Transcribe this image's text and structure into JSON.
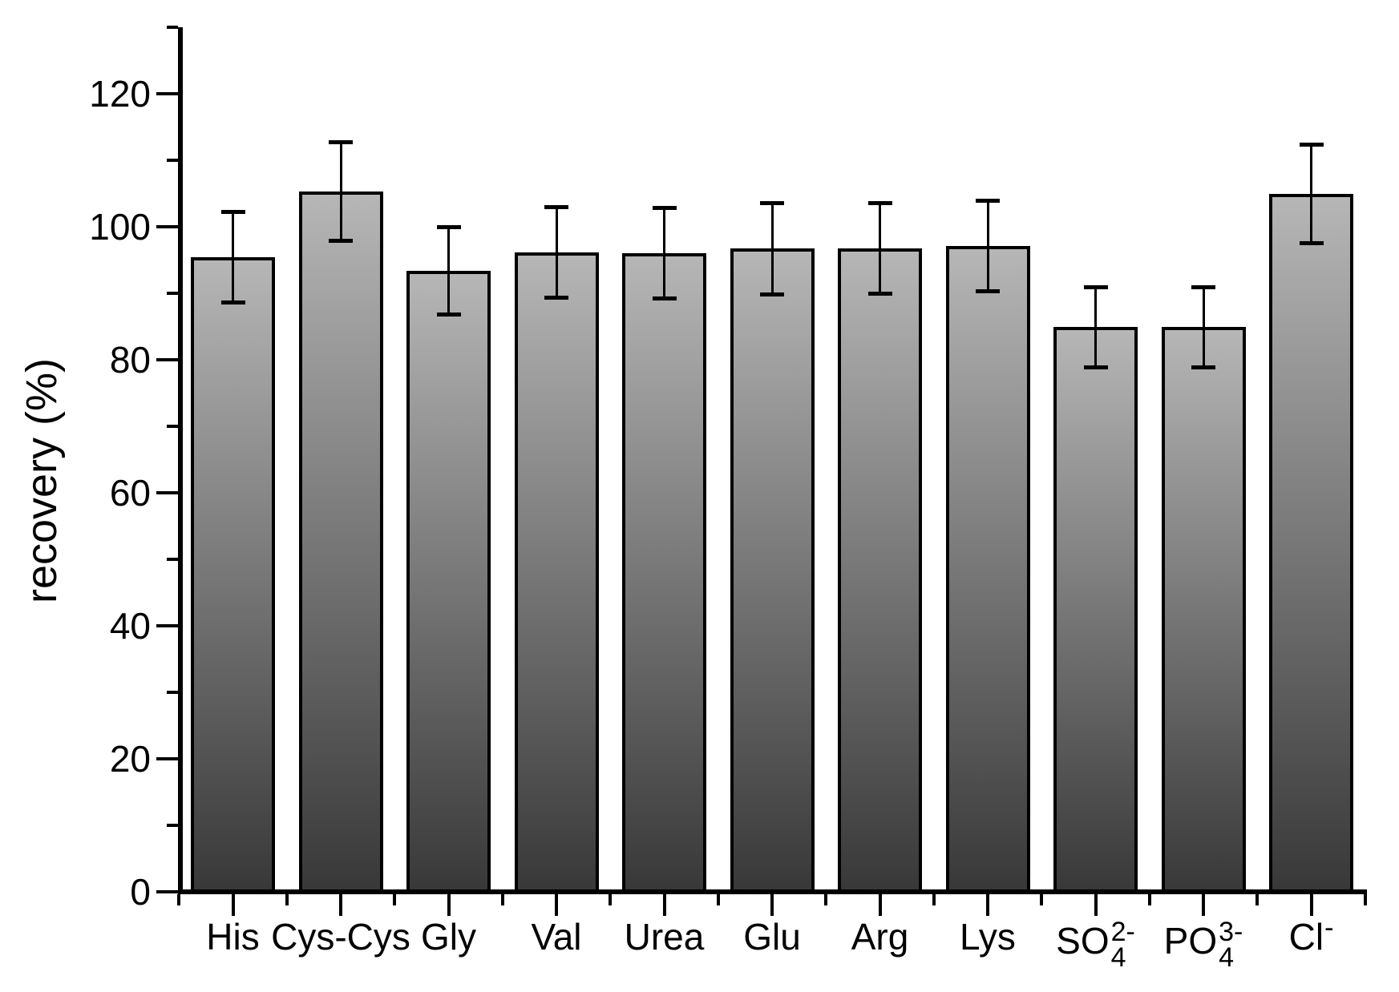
{
  "chart_data": {
    "type": "bar",
    "title": "",
    "xlabel": "",
    "ylabel": "recovery (%)",
    "ylim": [
      0,
      130
    ],
    "yticks_major": [
      0,
      20,
      40,
      60,
      80,
      100,
      120
    ],
    "yticks_minor": [
      10,
      30,
      50,
      70,
      90,
      110,
      130
    ],
    "grid": false,
    "legend": null,
    "categories": [
      {
        "id": "his",
        "main": "His"
      },
      {
        "id": "cys-cys",
        "main": "Cys-Cys"
      },
      {
        "id": "gly",
        "main": "Gly"
      },
      {
        "id": "val",
        "main": "Val"
      },
      {
        "id": "urea",
        "main": "Urea"
      },
      {
        "id": "glu",
        "main": "Glu"
      },
      {
        "id": "arg",
        "main": "Arg"
      },
      {
        "id": "lys",
        "main": "Lys"
      },
      {
        "id": "so4",
        "main": "SO",
        "sub": "4",
        "sup": "2-"
      },
      {
        "id": "po4",
        "main": "PO",
        "sub": "4",
        "sup": "3-"
      },
      {
        "id": "cl",
        "main": "Cl",
        "sup": "-"
      }
    ],
    "series": [
      {
        "name": "recovery",
        "values": [
          95.4,
          105.3,
          93.4,
          96.1,
          96.0,
          96.7,
          96.8,
          97.1,
          84.9,
          84.9,
          104.9
        ],
        "errors": [
          6.8,
          7.4,
          6.6,
          6.8,
          6.8,
          6.9,
          6.8,
          6.8,
          6.0,
          6.0,
          7.4
        ]
      }
    ],
    "colors": {
      "bar_fill_top": "#b6b6b6",
      "bar_fill_bottom": "#383838",
      "bar_border": "#000000",
      "error_bar": "#000000",
      "axis": "#000000",
      "text": "#000000",
      "background": "#ffffff"
    }
  }
}
